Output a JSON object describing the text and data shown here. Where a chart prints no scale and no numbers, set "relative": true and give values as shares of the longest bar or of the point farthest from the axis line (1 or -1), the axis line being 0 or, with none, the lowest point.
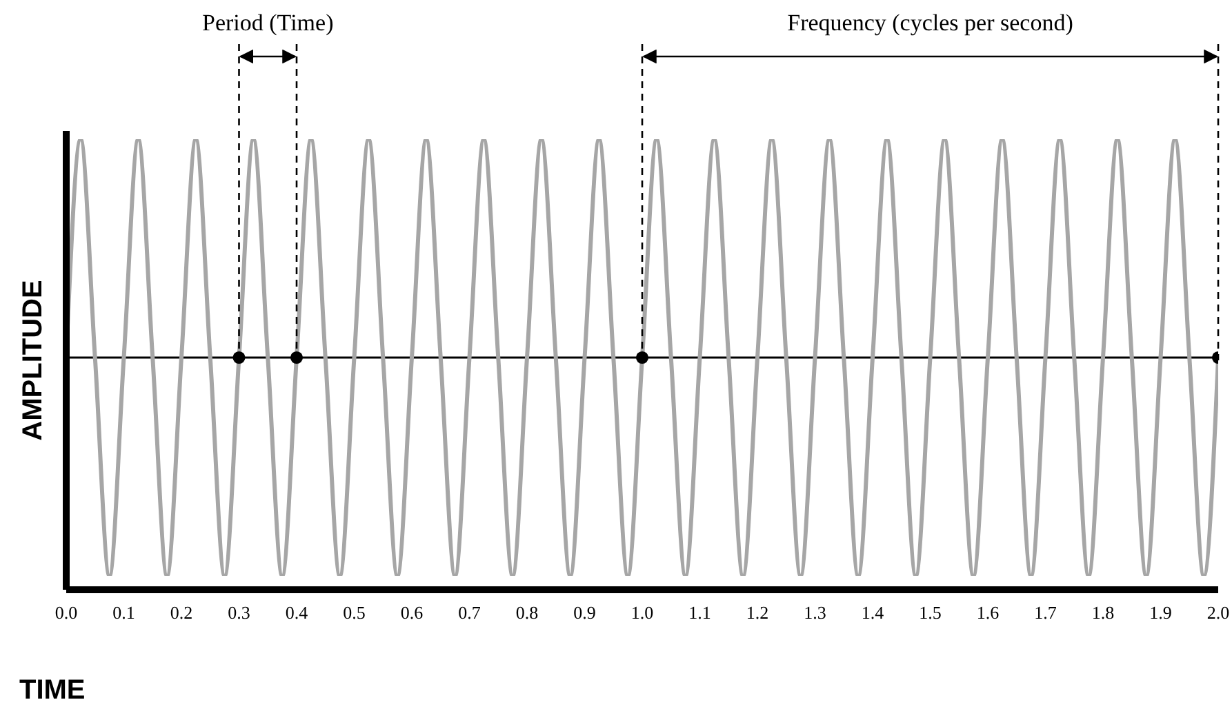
{
  "chart_data": {
    "type": "line",
    "relative": true,
    "xlabel": "TIME",
    "ylabel": "AMPLITUDE",
    "xlim": [
      0,
      2
    ],
    "xticks": [
      {
        "value": 0,
        "label": "0.0"
      },
      0.1,
      0.2,
      0.3,
      0.4,
      0.5,
      0.6,
      0.7,
      0.8,
      0.9,
      {
        "value": 1,
        "label": "1.0"
      },
      1.1,
      1.2,
      1.3,
      1.4,
      1.5,
      1.6,
      1.7,
      1.8,
      1.9,
      {
        "value": 2,
        "label": "2.0"
      }
    ],
    "series": [
      {
        "color": "#a6a6a6",
        "marker": "none",
        "x": [
          0,
          0.025,
          0.05,
          0.075,
          0.1,
          0.125,
          0.15,
          0.175,
          0.2,
          0.225,
          0.25,
          0.275,
          0.3,
          0.325,
          0.35,
          0.375,
          0.4,
          0.425,
          0.45,
          0.475,
          0.5,
          0.525,
          0.55,
          0.575,
          0.6,
          0.625,
          0.65,
          0.675,
          0.7,
          0.725,
          0.75,
          0.775,
          0.8,
          0.825,
          0.85,
          0.875,
          0.9,
          0.925,
          0.95,
          0.975,
          1,
          1.025,
          1.05,
          1.075,
          1.1,
          1.125,
          1.15,
          1.175,
          1.2,
          1.225,
          1.25,
          1.275,
          1.3,
          1.325,
          1.35,
          1.375,
          1.4,
          1.425,
          1.45,
          1.475,
          1.5,
          1.525,
          1.55,
          1.575,
          1.6,
          1.625,
          1.65,
          1.675,
          1.7,
          1.725,
          1.75,
          1.775,
          1.8,
          1.825,
          1.85,
          1.875,
          1.9,
          1.925,
          1.95,
          1.975,
          2
        ],
        "values": [
          0.5,
          1,
          0.5,
          0,
          0.5,
          1,
          0.5,
          0,
          0.5,
          1,
          0.5,
          0,
          0.5,
          1,
          0.5,
          0,
          0.5,
          1,
          0.5,
          0,
          0.5,
          1,
          0.5,
          0,
          0.5,
          1,
          0.5,
          0,
          0.5,
          1,
          0.5,
          0,
          0.5,
          1,
          0.5,
          0,
          0.5,
          1,
          0.5,
          0,
          0.5,
          1,
          0.5,
          0,
          0.5,
          1,
          0.5,
          0,
          0.5,
          1,
          0.5,
          0,
          0.5,
          1,
          0.5,
          0,
          0.5,
          1,
          0.5,
          0,
          0.5,
          1,
          0.5,
          0,
          0.5,
          1,
          0.5,
          0,
          0.5,
          1,
          0.5,
          0,
          0.5,
          1,
          0.5,
          0,
          0.5,
          1,
          0.5,
          0,
          0.5
        ]
      },
      {
        "type": "scatter",
        "color": "#000000",
        "marker": "circle",
        "x": [
          0.3,
          0.4,
          1,
          2
        ],
        "values": [
          0.5,
          0.5,
          0.5,
          0.5
        ]
      }
    ],
    "ref_lines": [
      {
        "axis": "y",
        "value": 0.5,
        "color": "#000000"
      },
      {
        "axis": "x",
        "value": 0.3,
        "color": "#000000",
        "line_style": "dashed"
      },
      {
        "axis": "x",
        "value": 0.4,
        "color": "#000000",
        "line_style": "dashed"
      },
      {
        "axis": "x",
        "value": 1,
        "color": "#000000",
        "line_style": "dashed"
      },
      {
        "axis": "x",
        "value": 2,
        "color": "#000000",
        "line_style": "dashed"
      }
    ],
    "annotations": [
      "Period (Time)",
      "Frequency (cycles per second)"
    ]
  }
}
